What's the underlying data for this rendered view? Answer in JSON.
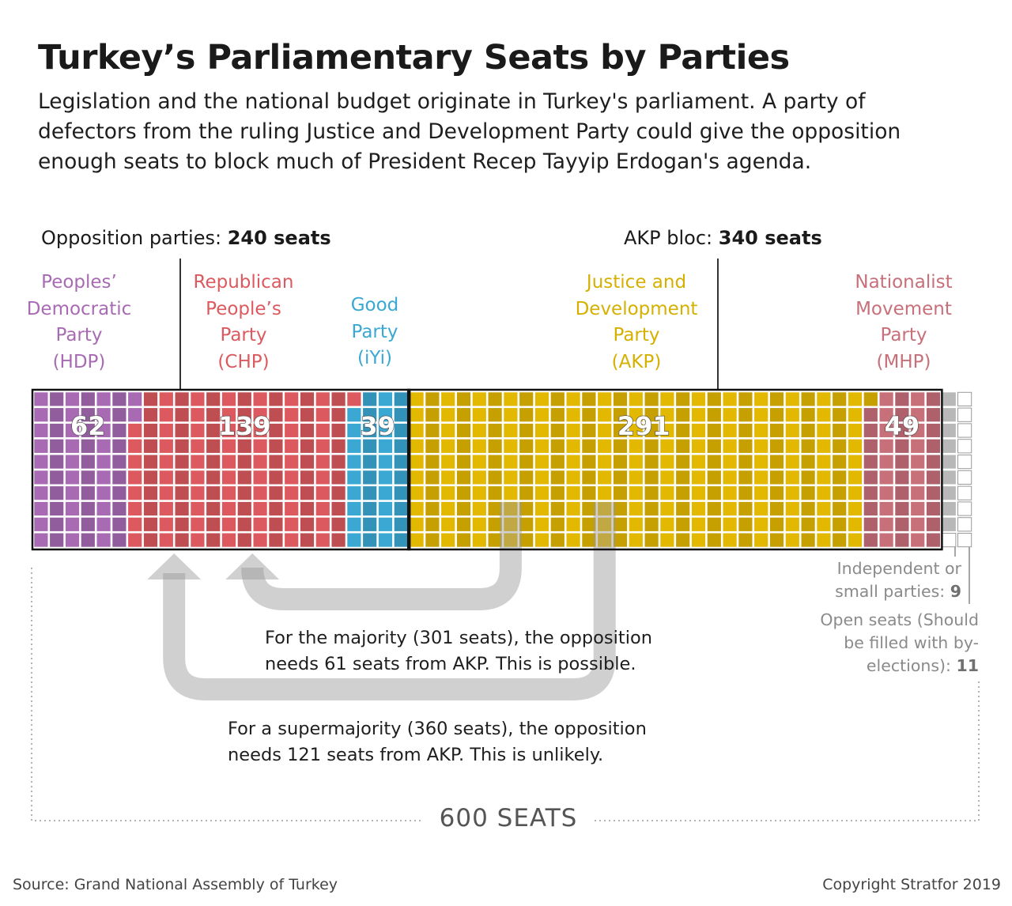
{
  "title": "Turkey’s Parliamentary Seats by Parties",
  "subtitle": "Legislation and the national budget originate in Turkey's parliament. A party of defectors from the ruling Justice and Development Party could give the opposition enough seats to block much of President Recep Tayyip Erdogan's agenda.",
  "blocs": {
    "opposition": {
      "label": "Opposition parties: ",
      "value": "240 seats"
    },
    "akp": {
      "label": "AKP bloc: ",
      "value": "340 seats"
    }
  },
  "parties": [
    {
      "lines": [
        "Peoples’",
        "Democratic",
        "Party",
        "(HDP)"
      ],
      "color": "#a86bb3"
    },
    {
      "lines": [
        "Republican",
        "People’s",
        "Party",
        "(CHP)"
      ],
      "color": "#dc5a5f"
    },
    {
      "lines": [
        "Good",
        "Party",
        "(iYi)"
      ],
      "color": "#3aa8d2"
    },
    {
      "lines": [
        "Justice and",
        "Development",
        "Party",
        "(AKP)"
      ],
      "color": "#d5b000"
    },
    {
      "lines": [
        "Nationalist",
        "Movement",
        "Party",
        "(MHP)"
      ],
      "color": "#c8707a"
    }
  ],
  "notes": {
    "majority": "For the majority (301 seats), the opposition needs 61 seats from AKP. This is possible.",
    "supermajority": "For a supermajority (360 seats), the opposition needs 121 seats from AKP. This is unlikely."
  },
  "side_labels": {
    "independent": {
      "text": "Independent or small parties: ",
      "value": "9"
    },
    "open": {
      "text": "Open seats (Should be filled with by-elections): ",
      "value": "11"
    }
  },
  "total_label": "600 SEATS",
  "footer": {
    "source": "Source: Grand National Assembly of Turkey",
    "copyright": "Copyright Stratfor 2019"
  },
  "chart_data": {
    "type": "waffle",
    "total": 600,
    "series": [
      {
        "name": "HDP",
        "value": 62,
        "color": "#a86bb3"
      },
      {
        "name": "CHP",
        "value": 139,
        "color": "#dc5a5f"
      },
      {
        "name": "iYi",
        "value": 39,
        "color": "#3aa8d2"
      },
      {
        "name": "AKP",
        "value": 291,
        "color": "#e2b800"
      },
      {
        "name": "MHP",
        "value": 49,
        "color": "#c8707a"
      },
      {
        "name": "Independent or small parties",
        "value": 9,
        "color": "#b8b8b8"
      },
      {
        "name": "Open seats",
        "value": 11,
        "color": "#ffffff"
      }
    ],
    "groups": [
      {
        "label": "Opposition parties",
        "value": 240
      },
      {
        "label": "AKP bloc",
        "value": 340
      }
    ],
    "thresholds": [
      {
        "label": "majority",
        "value": 301
      },
      {
        "label": "supermajority",
        "value": 360
      }
    ]
  }
}
